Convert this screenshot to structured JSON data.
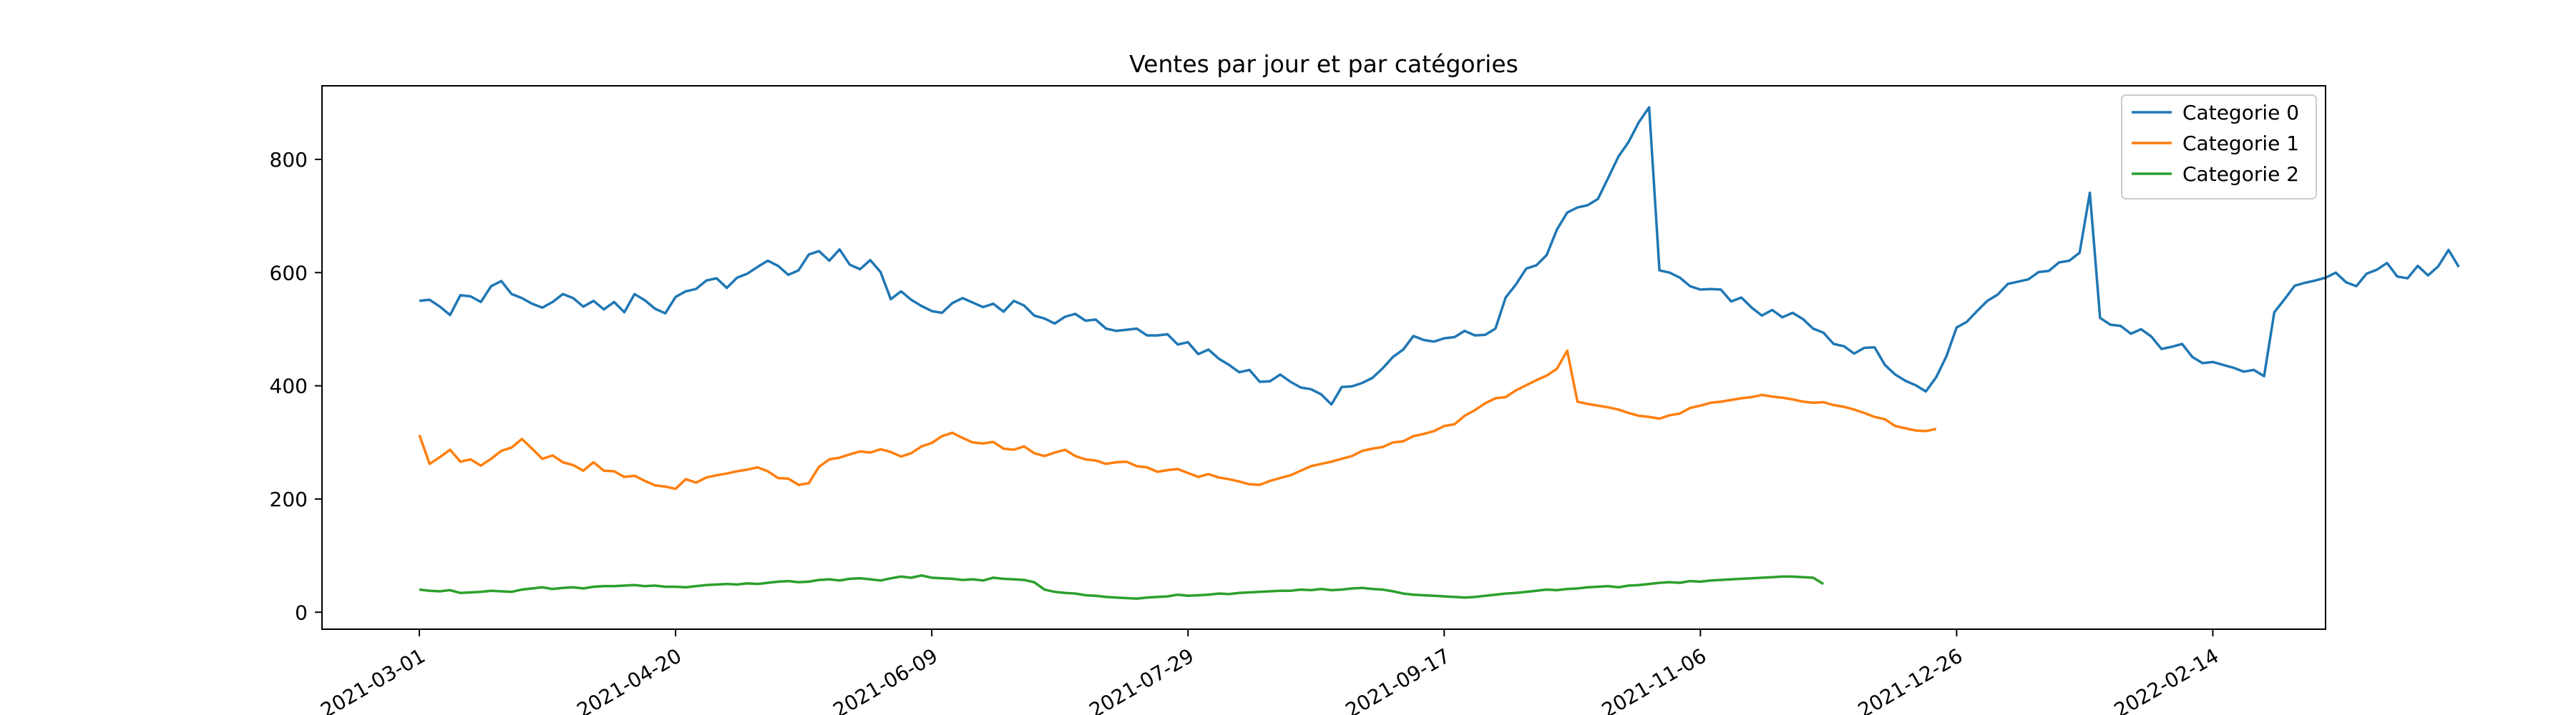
{
  "chart_data": {
    "type": "line",
    "title": "Ventes par jour et par catégories",
    "xlabel": "",
    "ylabel": "",
    "x_start": "2021-03-01",
    "xlim": [
      "2021-02-10",
      "2022-03-08"
    ],
    "ylim": [
      -30,
      930
    ],
    "x_ticks": [
      "2021-03-01",
      "2021-04-20",
      "2021-06-09",
      "2021-07-29",
      "2021-09-17",
      "2021-11-06",
      "2021-12-26",
      "2022-02-14"
    ],
    "y_ticks": [
      0,
      200,
      400,
      600,
      800
    ],
    "grid": false,
    "legend_position": "top-right",
    "series": [
      {
        "name": "Categorie 0",
        "color": "#1f77b4",
        "step_days": 2,
        "values": [
          550,
          552,
          540,
          525,
          560,
          558,
          548,
          576,
          585,
          562,
          555,
          545,
          538,
          548,
          562,
          555,
          540,
          550,
          535,
          548,
          530,
          562,
          551,
          536,
          528,
          557,
          567,
          571,
          586,
          590,
          573,
          591,
          598,
          610,
          621,
          612,
          596,
          604,
          632,
          638,
          621,
          641,
          614,
          606,
          622,
          601,
          553,
          567,
          552,
          541,
          532,
          529,
          546,
          555,
          547,
          539,
          545,
          531,
          550,
          542,
          524,
          519,
          510,
          522,
          527,
          515,
          517,
          501,
          497,
          499,
          501,
          489,
          489,
          491,
          473,
          477,
          456,
          464,
          448,
          437,
          424,
          428,
          407,
          408,
          420,
          407,
          397,
          394,
          385,
          367,
          398,
          399,
          405,
          414,
          431,
          451,
          464,
          488,
          481,
          478,
          484,
          486,
          497,
          489,
          490,
          501,
          556,
          579,
          607,
          613,
          631,
          676,
          706,
          715,
          719,
          730,
          767,
          805,
          831,
          866,
          892,
          604,
          600,
          591,
          576,
          570,
          571,
          570,
          549,
          556,
          538,
          524,
          534,
          521,
          529,
          518,
          501,
          494,
          474,
          470,
          457,
          467,
          468,
          437,
          420,
          409,
          401,
          390,
          415,
          452,
          503,
          513,
          532,
          550,
          561,
          580,
          584,
          588,
          601,
          603,
          618,
          621,
          635,
          741,
          520,
          508,
          506,
          492,
          500,
          487,
          465,
          469,
          474,
          451,
          440,
          442,
          437,
          432,
          425,
          428,
          417,
          530,
          553,
          577,
          582,
          586,
          591,
          600,
          583,
          576,
          598,
          605,
          617,
          593,
          590,
          612,
          595,
          611,
          640,
          610
        ]
      },
      {
        "name": "Categorie 1",
        "color": "#ff7f0e",
        "step_days": 2,
        "values": [
          313,
          262,
          274,
          287,
          266,
          270,
          259,
          271,
          285,
          291,
          306,
          289,
          271,
          277,
          265,
          260,
          250,
          265,
          250,
          249,
          239,
          241,
          232,
          224,
          222,
          218,
          235,
          229,
          238,
          242,
          245,
          249,
          252,
          256,
          249,
          237,
          236,
          225,
          228,
          257,
          270,
          273,
          279,
          284,
          282,
          288,
          283,
          275,
          281,
          293,
          299,
          311,
          317,
          308,
          300,
          298,
          301,
          289,
          287,
          293,
          281,
          276,
          282,
          287,
          276,
          270,
          268,
          262,
          265,
          266,
          258,
          256,
          248,
          251,
          253,
          246,
          239,
          244,
          238,
          235,
          231,
          226,
          225,
          232,
          237,
          242,
          250,
          258,
          262,
          266,
          271,
          276,
          285,
          289,
          292,
          300,
          302,
          311,
          315,
          320,
          329,
          332,
          347,
          357,
          369,
          378,
          380,
          392,
          401,
          410,
          418,
          430,
          462,
          372,
          368,
          365,
          362,
          358,
          352,
          347,
          345,
          342,
          348,
          351,
          361,
          365,
          370,
          372,
          375,
          378,
          380,
          384,
          381,
          379,
          376,
          372,
          370,
          371,
          366,
          363,
          358,
          352,
          345,
          341,
          329,
          325,
          321,
          320,
          324
        ]
      },
      {
        "name": "Categorie 2",
        "color": "#2ca02c",
        "step_days": 2,
        "values": [
          40,
          38,
          37,
          39,
          34,
          35,
          36,
          38,
          37,
          36,
          40,
          42,
          44,
          41,
          43,
          44,
          42,
          45,
          46,
          46,
          47,
          48,
          46,
          47,
          45,
          45,
          44,
          46,
          48,
          49,
          50,
          49,
          51,
          50,
          52,
          54,
          55,
          53,
          54,
          57,
          58,
          56,
          59,
          60,
          58,
          56,
          60,
          63,
          61,
          65,
          61,
          60,
          59,
          57,
          58,
          56,
          61,
          59,
          58,
          57,
          53,
          40,
          36,
          34,
          33,
          30,
          29,
          27,
          26,
          25,
          24,
          26,
          27,
          28,
          31,
          29,
          30,
          31,
          33,
          32,
          34,
          35,
          36,
          37,
          38,
          38,
          40,
          39,
          41,
          39,
          40,
          42,
          43,
          41,
          40,
          37,
          33,
          31,
          30,
          29,
          28,
          27,
          26,
          27,
          29,
          31,
          33,
          34,
          36,
          38,
          40,
          39,
          41,
          42,
          44,
          45,
          46,
          44,
          47,
          48,
          50,
          52,
          53,
          52,
          55,
          54,
          56,
          57,
          58,
          59,
          60,
          61,
          62,
          63,
          63,
          62,
          61,
          50
        ]
      }
    ]
  }
}
